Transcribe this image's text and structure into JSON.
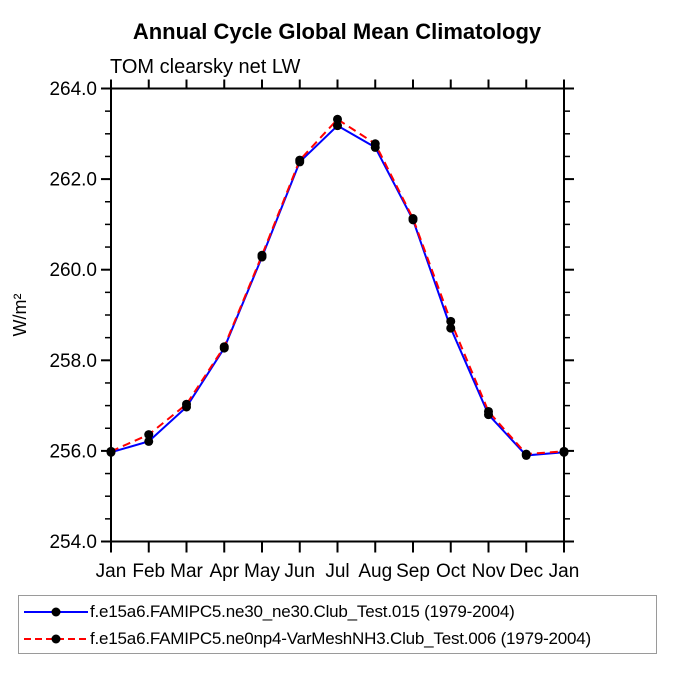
{
  "chart_data": {
    "type": "line",
    "title": "Annual Cycle Global Mean Climatology",
    "subtitle": "TOM clearsky net LW",
    "xlabel": "",
    "ylabel": "W/m²",
    "categories": [
      "Jan",
      "Feb",
      "Mar",
      "Apr",
      "May",
      "Jun",
      "Jul",
      "Aug",
      "Sep",
      "Oct",
      "Nov",
      "Dec",
      "Jan"
    ],
    "ylim": [
      254.0,
      264.0
    ],
    "y_major_ticks": [
      254.0,
      256.0,
      258.0,
      260.0,
      262.0,
      264.0
    ],
    "y_minor_step": 0.5,
    "grid": false,
    "legend_position": "bottom-outside",
    "marker": "filled-circle",
    "marker_color": "#000000",
    "series": [
      {
        "name": "f.e15a6.FAMIPC5.ne30_ne30.Club_Test.015 (1979-2004)",
        "color": "#0000ff",
        "style": "solid",
        "values": [
          255.97,
          256.21,
          256.97,
          258.27,
          260.28,
          262.38,
          263.18,
          262.7,
          261.1,
          258.71,
          256.8,
          255.9,
          255.97
        ]
      },
      {
        "name": "f.e15a6.FAMIPC5.ne0np4-VarMeshNH3.Club_Test.006 (1979-2004)",
        "color": "#ff0000",
        "style": "dashed",
        "values": [
          255.99,
          256.36,
          257.03,
          258.3,
          260.32,
          262.42,
          263.32,
          262.78,
          261.13,
          258.86,
          256.87,
          255.93,
          255.99
        ]
      }
    ]
  }
}
